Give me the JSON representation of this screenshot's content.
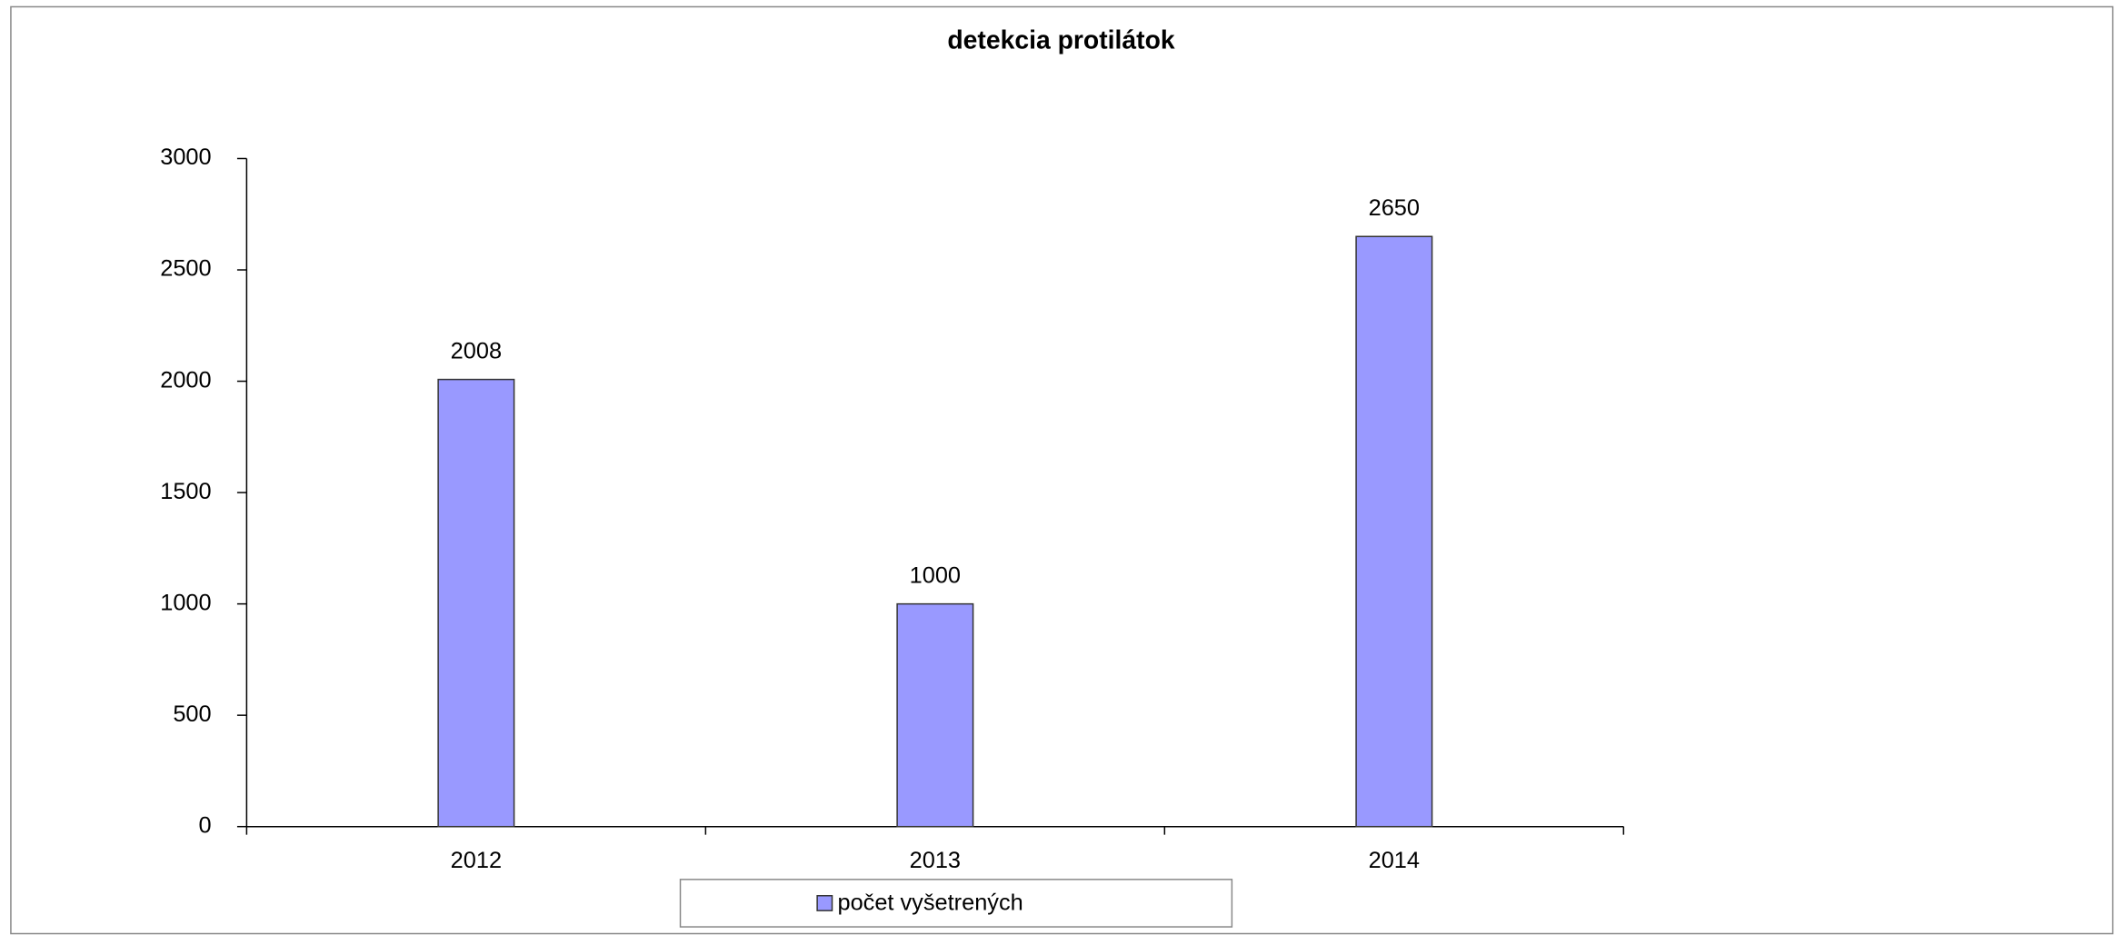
{
  "chart_data": {
    "type": "bar",
    "title": "detekcia protilátok",
    "categories": [
      "2012",
      "2013",
      "2014"
    ],
    "series": [
      {
        "name": "počet vyšetrených",
        "color": "#9999ff",
        "values": [
          2008,
          1000,
          2650
        ]
      }
    ],
    "ylim": [
      0,
      3000
    ],
    "yticks": [
      0,
      500,
      1000,
      1500,
      2000,
      2500,
      3000
    ],
    "grid": false,
    "legend": "bottom",
    "data_labels": true
  }
}
